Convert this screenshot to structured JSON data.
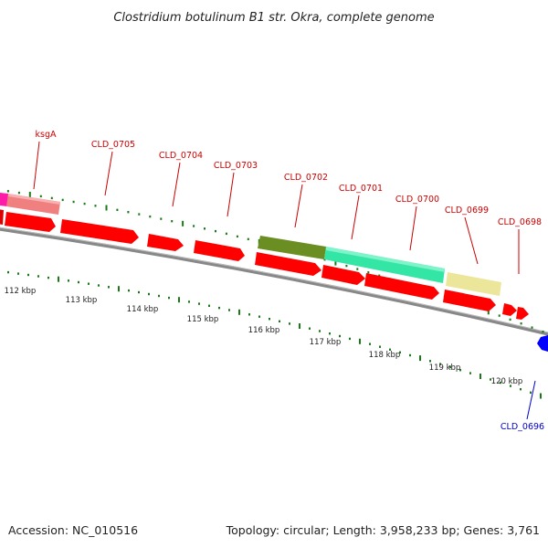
{
  "header": {
    "title": "Clostridium botulinum B1 str. Okra, complete genome"
  },
  "footer": {
    "accession": "Accession: NC_010516",
    "summary": "Topology: circular; Length: 3,958,233 bp; Genes: 3,761"
  },
  "colors": {
    "backbone": "#7a7a7a",
    "cds": "#ff0000",
    "forward_label": "#cc0000",
    "reverse_label": "#0000cc",
    "ticks": "#1a7a1a"
  },
  "gene_labels": [
    {
      "id": "ksgA",
      "text": "ksgA",
      "color": "#cc0000"
    },
    {
      "id": "CLD_0705",
      "text": "CLD_0705",
      "color": "#cc0000"
    },
    {
      "id": "CLD_0704",
      "text": "CLD_0704",
      "color": "#cc0000"
    },
    {
      "id": "CLD_0703",
      "text": "CLD_0703",
      "color": "#cc0000"
    },
    {
      "id": "CLD_0702",
      "text": "CLD_0702",
      "color": "#cc0000"
    },
    {
      "id": "CLD_0701",
      "text": "CLD_0701",
      "color": "#cc0000"
    },
    {
      "id": "CLD_0700",
      "text": "CLD_0700",
      "color": "#cc0000"
    },
    {
      "id": "CLD_0699",
      "text": "CLD_0699",
      "color": "#cc0000"
    },
    {
      "id": "CLD_0698",
      "text": "CLD_0698",
      "color": "#cc0000"
    },
    {
      "id": "CLD_0696",
      "text": "CLD_0696",
      "color": "#0000cc"
    }
  ],
  "scale_labels": [
    "112 kbp",
    "113 kbp",
    "114 kbp",
    "115 kbp",
    "116 kbp",
    "117 kbp",
    "118 kbp",
    "119 kbp",
    "120 kbp"
  ]
}
